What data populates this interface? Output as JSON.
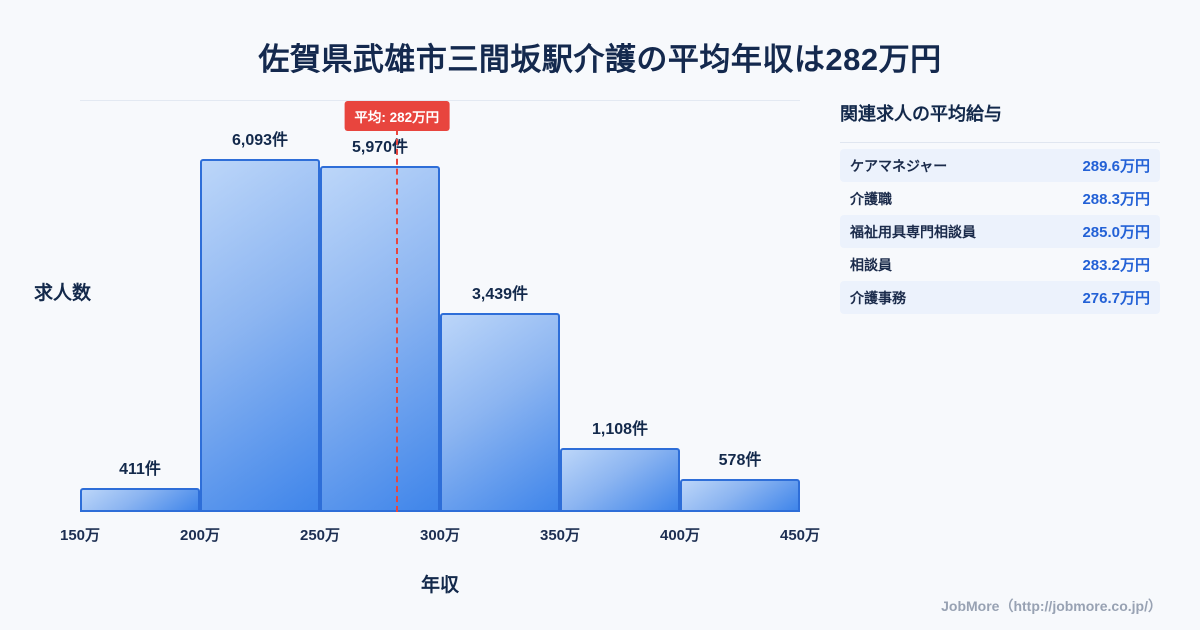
{
  "page": {
    "title": "佐賀県武雄市三間坂駅介護の平均年収は282万円",
    "footer": "JobMore（http://jobmore.co.jp/）"
  },
  "chart_data": {
    "type": "bar",
    "title": "佐賀県武雄市三間坂駅介護の平均年収は282万円",
    "xlabel": "年収",
    "ylabel": "求人数",
    "bin_edges": [
      150,
      200,
      250,
      300,
      350,
      400,
      450
    ],
    "tick_labels": [
      "150万",
      "200万",
      "250万",
      "300万",
      "350万",
      "400万",
      "450万"
    ],
    "values": [
      411,
      6093,
      5970,
      3439,
      1108,
      578
    ],
    "value_labels": [
      "411件",
      "6,093件",
      "5,970件",
      "3,439件",
      "1,108件",
      "578件"
    ],
    "ylim": [
      0,
      7100
    ],
    "grid": false,
    "legend": "none",
    "average": {
      "value": 282,
      "label": "平均: 282万円"
    },
    "colors": {
      "bar_fill_top": "#bcd6f9",
      "bar_fill_bottom": "#3f85ea",
      "bar_border": "#2e6ed8",
      "average_line": "#e8453e",
      "text": "#13294b",
      "salary_value": "#2361d6"
    }
  },
  "side_panel": {
    "heading": "関連求人の平均給与",
    "rows": [
      {
        "label": "ケアマネジャー",
        "value": "289.6万円"
      },
      {
        "label": "介護職",
        "value": "288.3万円"
      },
      {
        "label": "福祉用具専門相談員",
        "value": "285.0万円"
      },
      {
        "label": "相談員",
        "value": "283.2万円"
      },
      {
        "label": "介護事務",
        "value": "276.7万円"
      }
    ]
  }
}
